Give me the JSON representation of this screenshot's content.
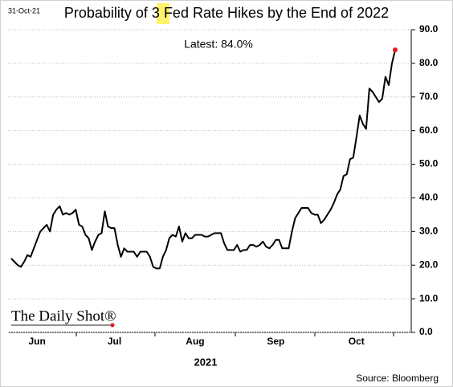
{
  "chart_data": {
    "type": "line",
    "stamp": "31-Oct-21",
    "title": "Probability of 3 Fed Rate Hikes by the End of 2022",
    "annotation": "Latest:  84.0%",
    "brand": "The Daily Shot®",
    "year_label": "2021",
    "source": "Source: Bloomberg",
    "categories": [
      null,
      null,
      null,
      null,
      null,
      null,
      null,
      null,
      "Jun",
      null,
      null,
      null,
      null,
      null,
      null,
      null,
      null,
      null,
      null,
      null,
      null,
      null,
      null,
      null,
      null,
      null,
      null,
      null,
      null,
      null,
      null,
      null,
      "Jul",
      null,
      null,
      null,
      null,
      null,
      null,
      null,
      null,
      null,
      null,
      null,
      null,
      null,
      null,
      null,
      null,
      null,
      null,
      null,
      null,
      null,
      null,
      null,
      null,
      "Aug",
      null,
      null,
      null,
      null,
      null,
      null,
      null,
      null,
      null,
      null,
      null,
      null,
      null,
      null,
      null,
      null,
      null,
      null,
      null,
      null,
      null,
      null,
      null,
      null,
      "Sep",
      null,
      null,
      null,
      null,
      null,
      null,
      null,
      null,
      null,
      null,
      null,
      null,
      null,
      null,
      null,
      null,
      null,
      null,
      null,
      null,
      null,
      null,
      null,
      null,
      "Oct",
      null,
      null,
      null,
      null,
      null,
      null,
      null,
      null,
      null,
      null,
      null,
      null
    ],
    "series": [
      {
        "color": "#000000",
        "marker_color": "#e8141c",
        "values": [
          22,
          21,
          20,
          19.5,
          21,
          23,
          22.5,
          25,
          27.5,
          30,
          31,
          32,
          30,
          35,
          36.5,
          37.5,
          35,
          35.5,
          35,
          35.5,
          36.5,
          32,
          31.5,
          29,
          28,
          24.5,
          27,
          29,
          29.5,
          36,
          31.5,
          31,
          31,
          26,
          22.5,
          25,
          24,
          24,
          24,
          22.5,
          24,
          24,
          24,
          22.5,
          19.5,
          19,
          19,
          22.5,
          24.5,
          28,
          29,
          28.5,
          31.5,
          27,
          29.5,
          28,
          28,
          29,
          29,
          29,
          28.5,
          28.5,
          29,
          29.5,
          29.5,
          29.5,
          26.5,
          24.5,
          24.5,
          24.5,
          26,
          24,
          24.5,
          24.5,
          26,
          26,
          25.5,
          26,
          27,
          25.5,
          25,
          26,
          27.5,
          27.5,
          25,
          25,
          25,
          30,
          34,
          35.5,
          37,
          37,
          37,
          35.5,
          35,
          35,
          32.5,
          33.5,
          35,
          36.5,
          38.5,
          41,
          42.5,
          46.5,
          47,
          51.5,
          52,
          58,
          64.5,
          62,
          60.5,
          72.5,
          71.5,
          70,
          68.5,
          69.5,
          76,
          73.5,
          80,
          84
        ]
      }
    ],
    "ylim": [
      0,
      90
    ],
    "yticks": [
      {
        "value": 0,
        "label": "0.0"
      },
      {
        "value": 10,
        "label": "10.0"
      },
      {
        "value": 20,
        "label": "20.0"
      },
      {
        "value": 30,
        "label": "30.0"
      },
      {
        "value": 40,
        "label": "40.0"
      },
      {
        "value": 50,
        "label": "50.0"
      },
      {
        "value": 60,
        "label": "60.0"
      },
      {
        "value": 70,
        "label": "70.0"
      },
      {
        "value": 80,
        "label": "80.0"
      },
      {
        "value": 90,
        "label": "90.0"
      }
    ],
    "grid": true
  }
}
